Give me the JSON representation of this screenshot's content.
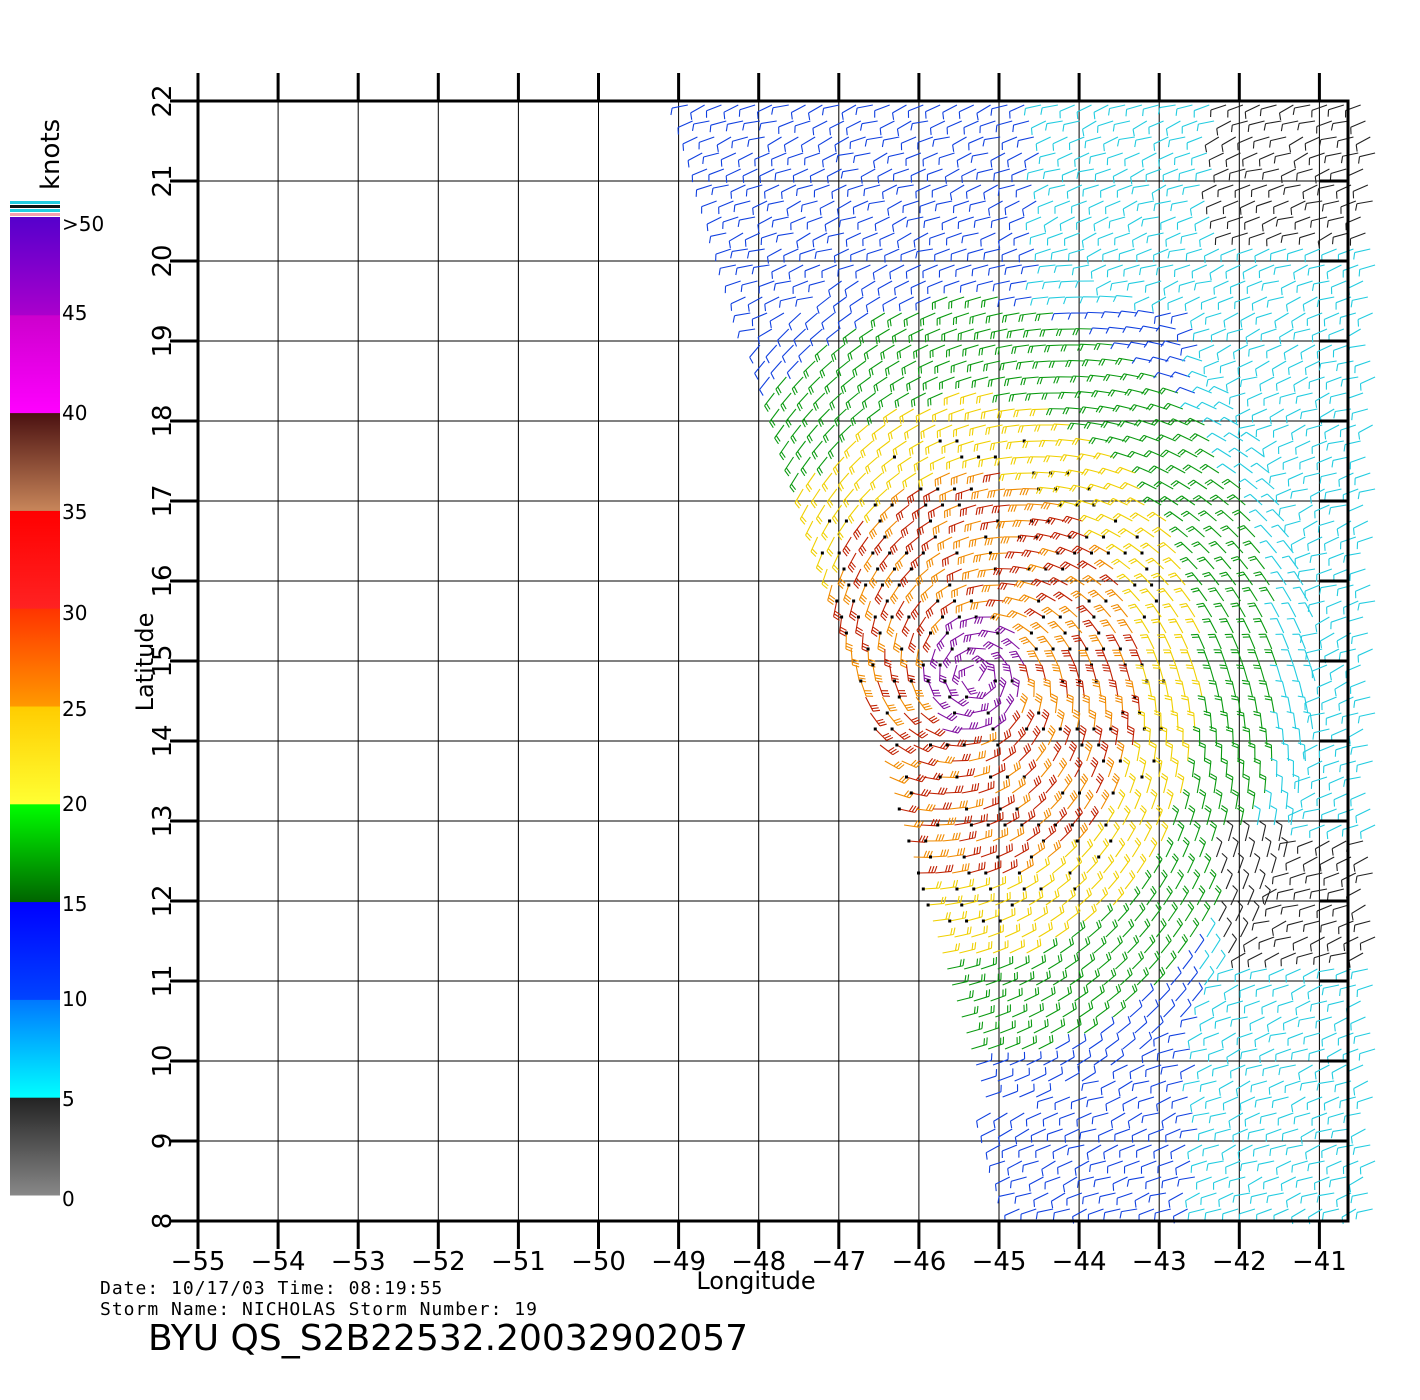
{
  "axes": {
    "xlabel": "Longitude",
    "ylabel": "Latitude",
    "xticks": [
      "−55",
      "−54",
      "−53",
      "−52",
      "−51",
      "−50",
      "−49",
      "−48",
      "−47",
      "−46",
      "−45",
      "−44",
      "−43",
      "−42",
      "−41"
    ],
    "yticks": [
      "8",
      "9",
      "10",
      "11",
      "12",
      "13",
      "14",
      "15",
      "16",
      "17",
      "18",
      "19",
      "20",
      "21",
      "22"
    ],
    "xlim": [
      -55,
      -40.4
    ],
    "ylim": [
      8,
      22
    ]
  },
  "colorbar": {
    "units": "knots",
    "labels": [
      ">50",
      "45",
      "40",
      "35",
      "30",
      "25",
      "20",
      "15",
      "10",
      "5",
      "0"
    ],
    "bands": [
      {
        "from": "#888888",
        "to": "#222222"
      },
      {
        "from": "#00ffff",
        "to": "#0077ff"
      },
      {
        "from": "#0044ff",
        "to": "#0000ff"
      },
      {
        "from": "#006400",
        "to": "#00ff00"
      },
      {
        "from": "#ffff33",
        "to": "#ffcc00"
      },
      {
        "from": "#ff9900",
        "to": "#ff3300"
      },
      {
        "from": "#ff2222",
        "to": "#ff0000"
      },
      {
        "from": "#c8865a",
        "to": "#4a1010"
      },
      {
        "from": "#ff00ff",
        "to": "#cc00cc"
      },
      {
        "from": "#aa00cc",
        "to": "#5500cc"
      }
    ]
  },
  "info": {
    "date_line": "Date: 10/17/03   Time: 08:19:55",
    "storm_line": "Storm Name: NICHOLAS   Storm Number: 19",
    "title": "BYU QS_S2B22532.20032902057"
  },
  "wind_colors": {
    "calm": "#222222",
    "light": "#22cce0",
    "moderate": "#1040e0",
    "fresh": "#0a9a10",
    "strong": "#f0d000",
    "gale": "#f08a00",
    "storm": "#c02000",
    "violent": "#8010a0"
  },
  "storm_center": {
    "lon": -45.3,
    "lat": 14.8
  },
  "swath": {
    "west_edge_at_22": -48.9,
    "west_edge_at_8": -44.7
  }
}
